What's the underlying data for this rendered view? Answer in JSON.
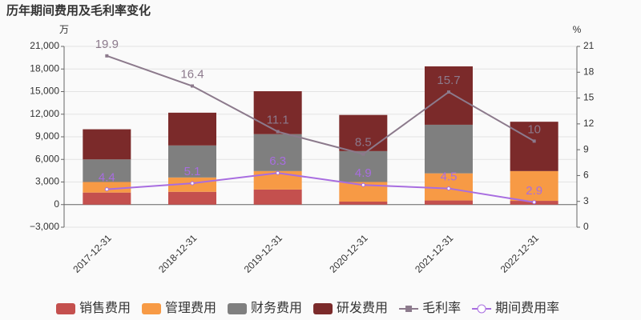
{
  "chart_data": {
    "type": "bar",
    "title": "历年期间费用及毛利率变化",
    "y_unit": "万",
    "y2_unit": "%",
    "categories": [
      "2017-12-31",
      "2018-12-31",
      "2019-12-31",
      "2020-12-31",
      "2021-12-31",
      "2022-12-31"
    ],
    "series": [
      {
        "name": "销售费用",
        "type": "bar",
        "color": "#c4504e",
        "values": [
          1600,
          1700,
          2000,
          400,
          550,
          500
        ]
      },
      {
        "name": "管理费用",
        "type": "bar",
        "color": "#f79a45",
        "values": [
          1400,
          1900,
          2450,
          2600,
          3600,
          3950
        ]
      },
      {
        "name": "财务费用",
        "type": "bar",
        "color": "#7f7f7f",
        "values": [
          3000,
          4250,
          4900,
          4100,
          6450,
          0
        ]
      },
      {
        "name": "研发费用",
        "type": "bar",
        "color": "#7b2a2a",
        "values": [
          4000,
          4350,
          5700,
          4800,
          7750,
          6550
        ]
      },
      {
        "name": "毛利率",
        "type": "line",
        "axis": "y2",
        "marker": "square",
        "color": "#8c7a8c",
        "values": [
          19.9,
          16.4,
          11.1,
          8.5,
          15.7,
          10
        ]
      },
      {
        "name": "期间费用率",
        "type": "line",
        "axis": "y2",
        "marker": "circle",
        "color": "#a86de0",
        "values": [
          4.4,
          5.1,
          6.3,
          4.9,
          4.5,
          2.9
        ]
      }
    ],
    "ylim": [
      -3000,
      21000
    ],
    "yticks": [
      {
        "value": -3000,
        "label": "−3,000"
      },
      0,
      {
        "value": 3000,
        "label": "3,000"
      },
      {
        "value": 6000,
        "label": "6,000"
      },
      {
        "value": 9000,
        "label": "9,000"
      },
      {
        "value": 12000,
        "label": "12,000"
      },
      {
        "value": 15000,
        "label": "15,000"
      },
      {
        "value": 18000,
        "label": "18,000"
      },
      {
        "value": 21000,
        "label": "21,000"
      }
    ],
    "y2lim": [
      0,
      21
    ],
    "y2ticks": [
      0,
      3,
      6,
      9,
      12,
      15,
      18,
      21
    ],
    "grid": true
  }
}
